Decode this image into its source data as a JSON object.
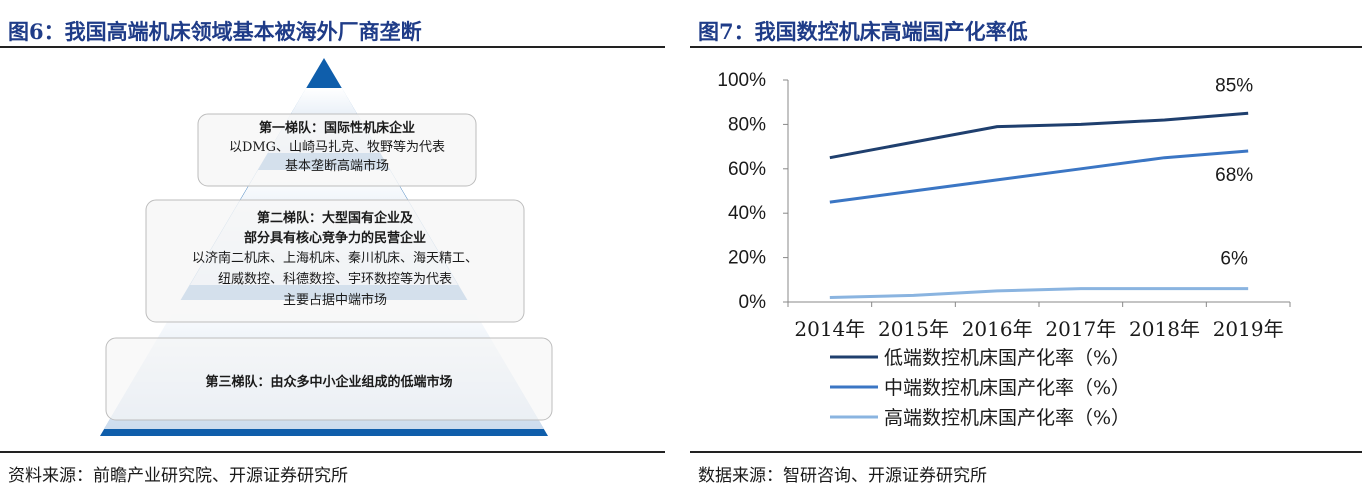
{
  "left": {
    "title": "图6：我国高端机床领域基本被海外厂商垄断",
    "tiers": [
      {
        "lines": [
          "第一梯队：国际性机床企业",
          "以DMG、山崎马扎克、牧野等为代表",
          "基本垄断高端市场"
        ]
      },
      {
        "lines": [
          "第二梯队：大型国有企业及",
          "部分具有核心竞争力的民营企业",
          "以济南二机床、上海机床、秦川机床、海天精工、",
          "纽威数控、科德数控、宇环数控等为代表",
          "主要占据中端市场"
        ]
      },
      {
        "lines": [
          "第三梯队：由众多中小企业组成的低端市场"
        ]
      }
    ],
    "source": "资料来源：前瞻产业研究院、开源证券研究所"
  },
  "right": {
    "title": "图7：我国数控机床高端国产化率低",
    "source": "数据来源：智研咨询、开源证券研究所"
  },
  "chart_data": {
    "type": "line",
    "categories": [
      "2014年",
      "2015年",
      "2016年",
      "2017年",
      "2018年",
      "2019年"
    ],
    "series": [
      {
        "name": "低端数控机床国产化率（%）",
        "values": [
          65,
          72,
          79,
          80,
          82,
          85
        ],
        "color": "#1f3f6e"
      },
      {
        "name": "中端数控机床国产化率（%）",
        "values": [
          45,
          50,
          55,
          60,
          65,
          68
        ],
        "color": "#3b76c4"
      },
      {
        "name": "高端数控机床国产化率（%）",
        "values": [
          2,
          3,
          5,
          6,
          6,
          6
        ],
        "color": "#8ab4e0"
      }
    ],
    "yticks": [
      "0%",
      "20%",
      "40%",
      "60%",
      "80%",
      "100%"
    ],
    "ylim": [
      0,
      100
    ],
    "annotations": [
      "85%",
      "68%",
      "6%"
    ],
    "legend_position": "bottom",
    "grid": false
  }
}
